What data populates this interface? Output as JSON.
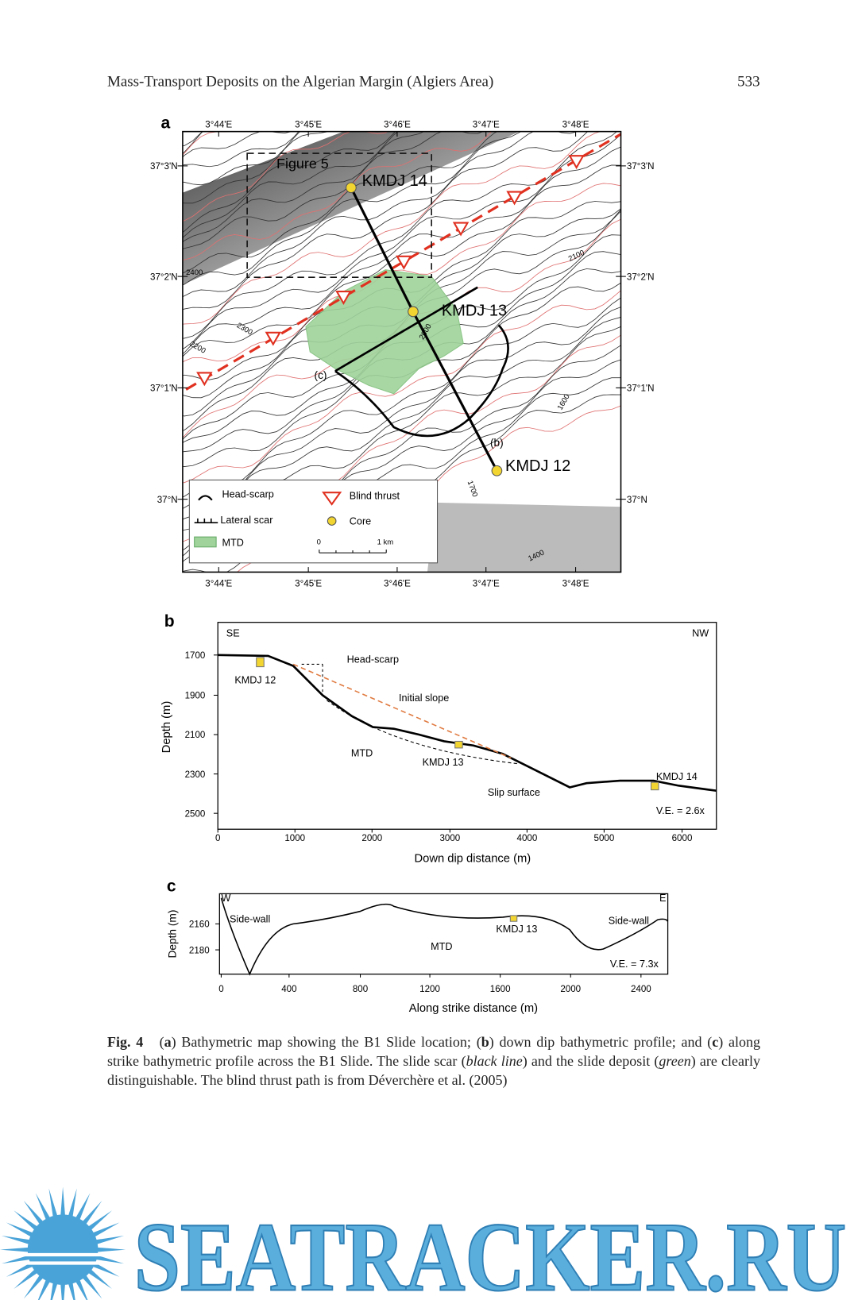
{
  "header": {
    "title": "Mass-Transport Deposits on the Algerian Margin (Algiers Area)",
    "page_number": "533"
  },
  "figure": {
    "panel_a": {
      "letter": "a",
      "lon_labels": [
        "3°44'E",
        "3°45'E",
        "3°46'E",
        "3°47'E",
        "3°48'E"
      ],
      "lat_labels": [
        "37°3'N",
        "37°2'N",
        "37°1'N",
        "37°N"
      ],
      "labels": {
        "figure5": "Figure 5",
        "core14": "KMDJ 14",
        "core13": "KMDJ 13",
        "core12": "KMDJ 12",
        "profile_c": "(c)",
        "profile_b": "(b)"
      },
      "contour_labels": [
        "2400",
        "2300",
        "2200",
        "2100",
        "2000",
        "1600",
        "1700",
        "1400"
      ],
      "legend": {
        "head_scarp": "Head-scarp",
        "blind_thrust": "Blind thrust",
        "lateral_scar": "Lateral scar",
        "core": "Core",
        "mtd": "MTD",
        "scale_zero": "0",
        "scale_km": "1 km"
      }
    },
    "panel_b": {
      "letter": "b",
      "left": "SE",
      "right": "NW",
      "y_axis": "Depth (m)",
      "x_axis": "Down dip distance (m)",
      "yticks": [
        "1700",
        "1900",
        "2100",
        "2300",
        "2500"
      ],
      "xticks": [
        "0",
        "1000",
        "2000",
        "3000",
        "4000",
        "5000",
        "6000"
      ],
      "annotations": {
        "head_scarp": "Head-scarp",
        "initial_slope": "Initial slope",
        "core12": "KMDJ 12",
        "mtd": "MTD",
        "core13": "KMDJ 13",
        "slip": "Slip surface",
        "core14": "KMDJ 14",
        "ve": "V.E. = 2.6x"
      }
    },
    "panel_c": {
      "letter": "c",
      "left": "W",
      "right": "E",
      "y_axis": "Depth (m)",
      "x_axis": "Along strike distance  (m)",
      "yticks": [
        "2160",
        "2180"
      ],
      "xticks": [
        "0",
        "400",
        "800",
        "1200",
        "1600",
        "2000",
        "2400"
      ],
      "annotations": {
        "side_wall_left": "Side-wall",
        "side_wall_right": "Side-wall",
        "core13": "KMDJ 13",
        "mtd": "MTD",
        "ve": "V.E. = 7.3x"
      }
    }
  },
  "caption": {
    "label": "Fig. 4",
    "runs": [
      "(",
      "a",
      ") Bathymetric map showing the B1 Slide location; (",
      "b",
      ") down dip bathymetric profile; and (",
      "c",
      ") along strike bathymetric profile across the B1 Slide. The slide scar (",
      "black line",
      ") and the slide deposit (",
      "green",
      ") are clearly distinguishable. The blind thrust path is from Déverchère et al. (2005)"
    ]
  },
  "watermark": "SEATRACKER.RU"
}
